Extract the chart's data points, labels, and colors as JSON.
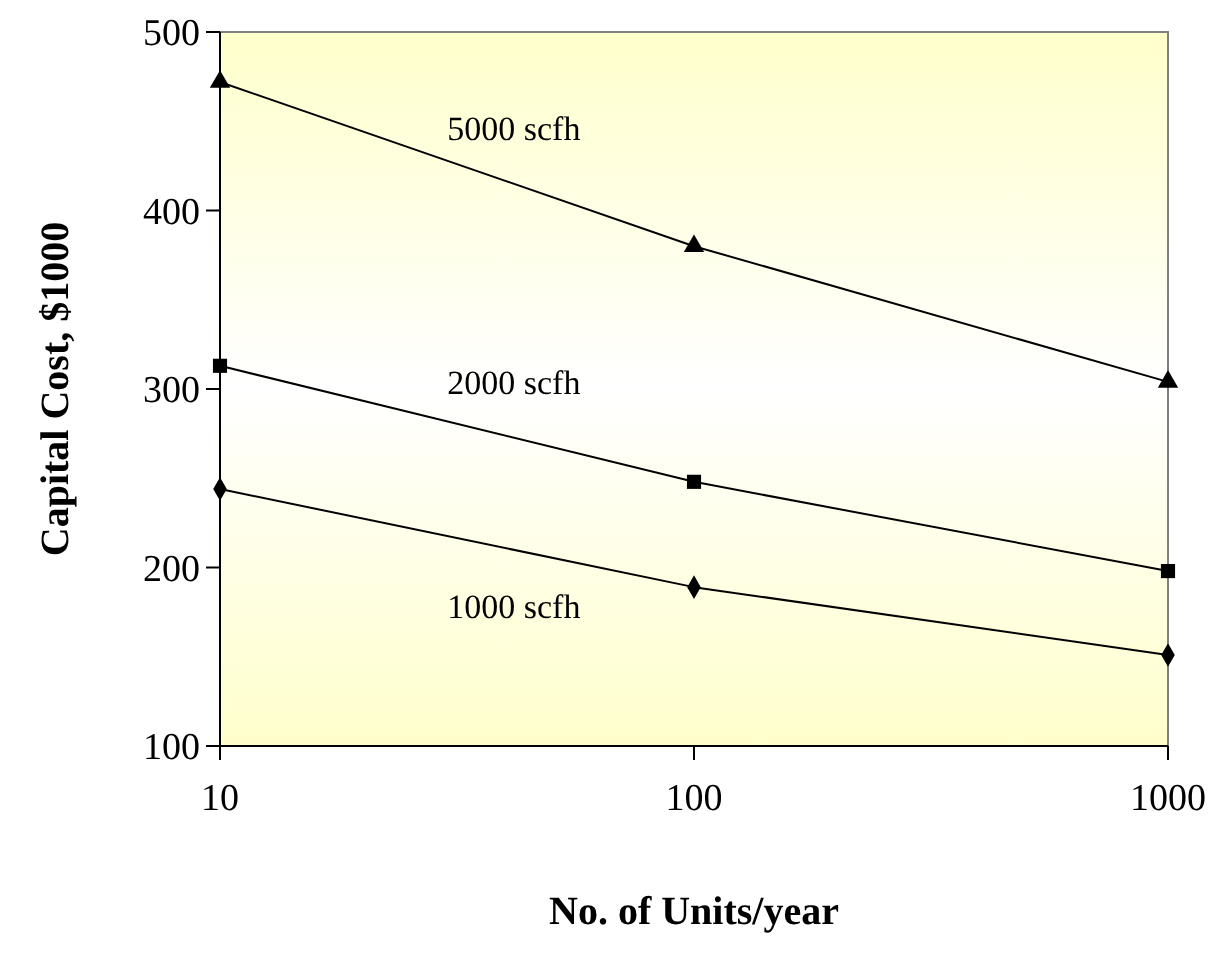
{
  "chart_data": {
    "type": "line",
    "xlabel": "No. of Units/year",
    "ylabel": "Capital Cost, $1000",
    "log": "x",
    "x": [
      10,
      100,
      1000
    ],
    "xlim": [
      10,
      1000
    ],
    "xticks": [
      10,
      100,
      1000
    ],
    "ylim": [
      100,
      500
    ],
    "yticks": [
      100,
      200,
      300,
      400,
      500
    ],
    "line_style": "solid",
    "series": [
      {
        "name": "5000 scfh",
        "color": "#000000",
        "marker": "triangle",
        "values": [
          472,
          380,
          304
        ]
      },
      {
        "name": "2000 scfh",
        "color": "#000000",
        "marker": "square",
        "values": [
          313,
          248,
          198
        ]
      },
      {
        "name": "1000 scfh",
        "color": "#000000",
        "marker": "diamond",
        "values": [
          244,
          189,
          151
        ]
      }
    ]
  }
}
